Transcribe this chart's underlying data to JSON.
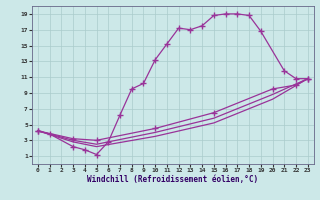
{
  "xlabel": "Windchill (Refroidissement éolien,°C)",
  "background_color": "#cce8e8",
  "grid_color": "#aacccc",
  "line_color": "#993399",
  "xlim": [
    -0.5,
    23.5
  ],
  "ylim": [
    0,
    20
  ],
  "xticks": [
    0,
    1,
    2,
    3,
    4,
    5,
    6,
    7,
    8,
    9,
    10,
    11,
    12,
    13,
    14,
    15,
    16,
    17,
    18,
    19,
    20,
    21,
    22,
    23
  ],
  "yticks": [
    1,
    3,
    5,
    7,
    9,
    11,
    13,
    15,
    17,
    19
  ],
  "main_series": [
    [
      0,
      4.2
    ],
    [
      1,
      3.8
    ],
    [
      3,
      2.2
    ],
    [
      4,
      1.8
    ],
    [
      5,
      1.2
    ],
    [
      6,
      2.8
    ],
    [
      7,
      6.2
    ],
    [
      8,
      9.5
    ],
    [
      9,
      10.2
    ],
    [
      10,
      13.2
    ],
    [
      11,
      15.2
    ],
    [
      12,
      17.2
    ],
    [
      13,
      17.0
    ],
    [
      14,
      17.5
    ],
    [
      15,
      18.8
    ],
    [
      16,
      19.0
    ],
    [
      17,
      19.0
    ],
    [
      18,
      18.8
    ],
    [
      19,
      16.8
    ],
    [
      21,
      11.8
    ],
    [
      22,
      10.8
    ],
    [
      23,
      10.8
    ]
  ],
  "diag_series": [
    {
      "points": [
        [
          0,
          4.2
        ],
        [
          3,
          3.2
        ],
        [
          5,
          3.0
        ],
        [
          10,
          4.5
        ],
        [
          15,
          6.5
        ],
        [
          20,
          9.5
        ],
        [
          22,
          10.0
        ],
        [
          23,
          10.8
        ]
      ],
      "marker": true
    },
    {
      "points": [
        [
          0,
          4.2
        ],
        [
          3,
          3.0
        ],
        [
          5,
          2.5
        ],
        [
          10,
          4.0
        ],
        [
          15,
          5.8
        ],
        [
          20,
          8.8
        ],
        [
          23,
          10.8
        ]
      ],
      "marker": false
    },
    {
      "points": [
        [
          0,
          4.2
        ],
        [
          3,
          2.8
        ],
        [
          5,
          2.2
        ],
        [
          10,
          3.5
        ],
        [
          15,
          5.2
        ],
        [
          20,
          8.2
        ],
        [
          23,
          10.8
        ]
      ],
      "marker": false
    }
  ]
}
